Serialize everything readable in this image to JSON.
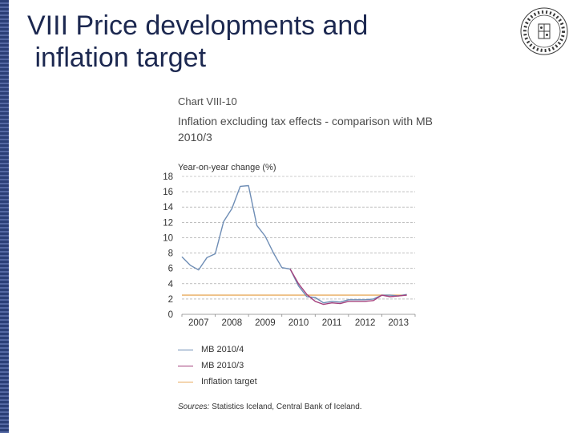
{
  "slide": {
    "title_line1": "VIII Price developments and",
    "title_line2": " inflation target"
  },
  "chart_data": {
    "type": "line",
    "chart_number": "Chart VIII-10",
    "title": "Inflation excluding tax effects - comparison with MB 2010/3",
    "ylabel": "Year-on-year change (%)",
    "ylim": [
      0,
      18
    ],
    "yticks": [
      "18",
      "16",
      "14",
      "12",
      "10",
      "8",
      "6",
      "4",
      "2",
      "0"
    ],
    "xticks": [
      "2007",
      "2008",
      "2009",
      "2010",
      "2011",
      "2012",
      "2013"
    ],
    "xlim": [
      2007.0,
      2014.0
    ],
    "grid": true,
    "series": [
      {
        "name": "MB 2010/4",
        "color": "#6e8db5",
        "points": [
          [
            2007.0,
            7.5
          ],
          [
            2007.25,
            6.4
          ],
          [
            2007.5,
            5.8
          ],
          [
            2007.75,
            7.4
          ],
          [
            2008.0,
            7.9
          ],
          [
            2008.25,
            12.1
          ],
          [
            2008.5,
            13.8
          ],
          [
            2008.75,
            16.7
          ],
          [
            2009.0,
            16.8
          ],
          [
            2009.25,
            11.6
          ],
          [
            2009.5,
            10.2
          ],
          [
            2009.75,
            8.0
          ],
          [
            2010.0,
            6.1
          ],
          [
            2010.25,
            5.9
          ],
          [
            2010.5,
            3.7
          ],
          [
            2010.75,
            2.3
          ],
          [
            2011.0,
            2.2
          ],
          [
            2011.25,
            1.5
          ],
          [
            2011.5,
            1.7
          ],
          [
            2011.75,
            1.6
          ],
          [
            2012.0,
            1.9
          ],
          [
            2012.25,
            1.9
          ],
          [
            2012.5,
            1.9
          ],
          [
            2012.75,
            2.0
          ],
          [
            2013.0,
            2.5
          ],
          [
            2013.25,
            2.5
          ],
          [
            2013.5,
            2.4
          ],
          [
            2013.75,
            2.6
          ]
        ]
      },
      {
        "name": "MB 2010/3",
        "color": "#a4407c",
        "points": [
          [
            2010.25,
            5.9
          ],
          [
            2010.5,
            4.0
          ],
          [
            2010.75,
            2.6
          ],
          [
            2011.0,
            1.7
          ],
          [
            2011.25,
            1.3
          ],
          [
            2011.5,
            1.5
          ],
          [
            2011.75,
            1.4
          ],
          [
            2012.0,
            1.7
          ],
          [
            2012.25,
            1.7
          ],
          [
            2012.5,
            1.7
          ],
          [
            2012.75,
            1.8
          ],
          [
            2013.0,
            2.5
          ],
          [
            2013.25,
            2.3
          ],
          [
            2013.5,
            2.4
          ],
          [
            2013.75,
            2.5
          ]
        ]
      },
      {
        "name": "Inflation target",
        "color": "#e8ab5e",
        "points": [
          [
            2007.0,
            2.5
          ],
          [
            2013.75,
            2.5
          ]
        ]
      }
    ],
    "sources_label": "Sources:",
    "sources_text": "Statistics Iceland, Central Bank of Iceland."
  }
}
